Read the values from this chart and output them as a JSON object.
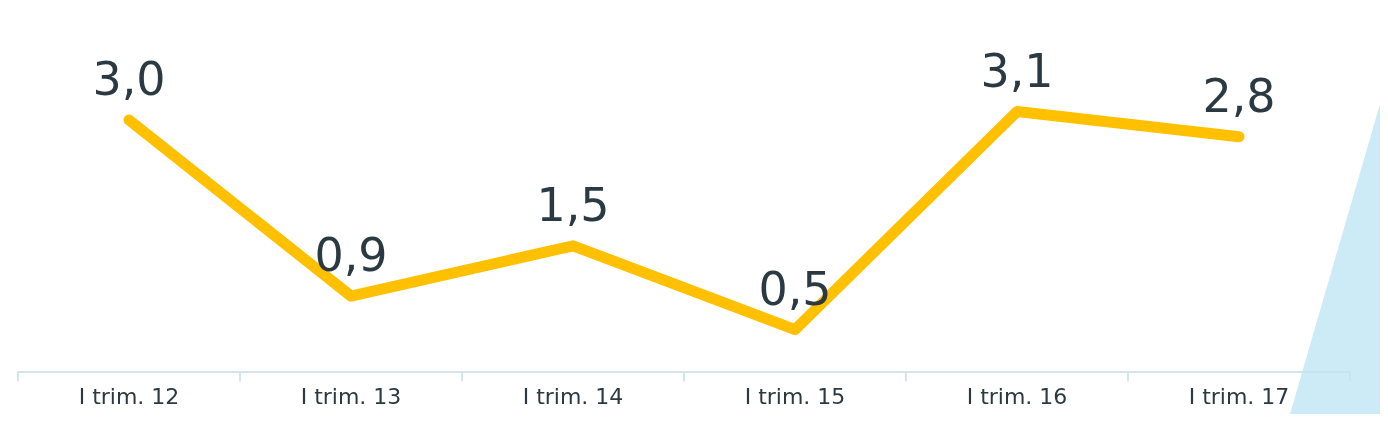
{
  "chart_data": {
    "type": "line",
    "categories": [
      "I trim. 12",
      "I trim. 13",
      "I trim. 14",
      "I trim. 15",
      "I trim. 16",
      "I trim. 17"
    ],
    "series": [
      {
        "color": "#ffc000",
        "values": [
          3.0,
          0.9,
          1.5,
          0.5,
          3.1,
          2.8
        ],
        "value_labels": [
          "3,0",
          "0,9",
          "1,5",
          "0,5",
          "3,1",
          "2,8"
        ]
      }
    ],
    "marker": "none",
    "grid": false,
    "legend": false,
    "tick_labels": "x"
  }
}
